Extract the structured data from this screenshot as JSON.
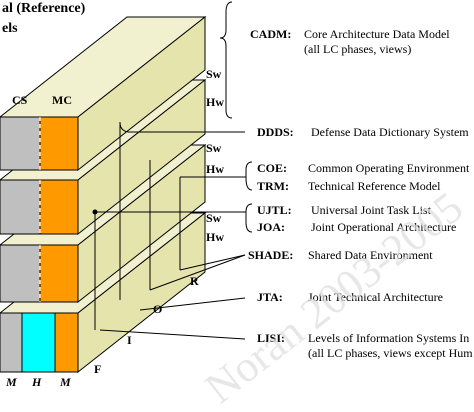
{
  "title": {
    "line1": "al (Reference)",
    "line2": "els"
  },
  "face_labels": [
    "CS",
    "MC"
  ],
  "layer_labels": [
    "Sw",
    "Hw",
    "Sw",
    "Hw",
    "Sw",
    "Hw"
  ],
  "definitions": [
    {
      "abbr": "CADM:",
      "text": "Core Architecture Data Model",
      "text2": "(all LC phases, views)"
    },
    {
      "abbr": "DDDS:",
      "text": "Defense Data Dictionary System"
    },
    {
      "abbr": "COE:",
      "text": "Common Operating Environment"
    },
    {
      "abbr": "TRM:",
      "text": "Technical Reference Model"
    },
    {
      "abbr": "UJTL:",
      "text": "Universal Joint Task List"
    },
    {
      "abbr": "JOA:",
      "text": "Joint Operational Architecture"
    },
    {
      "abbr": "SHADE:",
      "text": "Shared Data Environment"
    },
    {
      "abbr": "JTA:",
      "text": "Joint Technical Architecture"
    },
    {
      "abbr": "LISI:",
      "text": "Levels of Information Systems In",
      "text2": "(all LC phases, views except Hum"
    }
  ],
  "axis_letters": [
    "R",
    "O",
    "I",
    "F"
  ],
  "bottom_letters": [
    "M",
    "H",
    "M"
  ],
  "watermark": "Noran 2003-2005"
}
